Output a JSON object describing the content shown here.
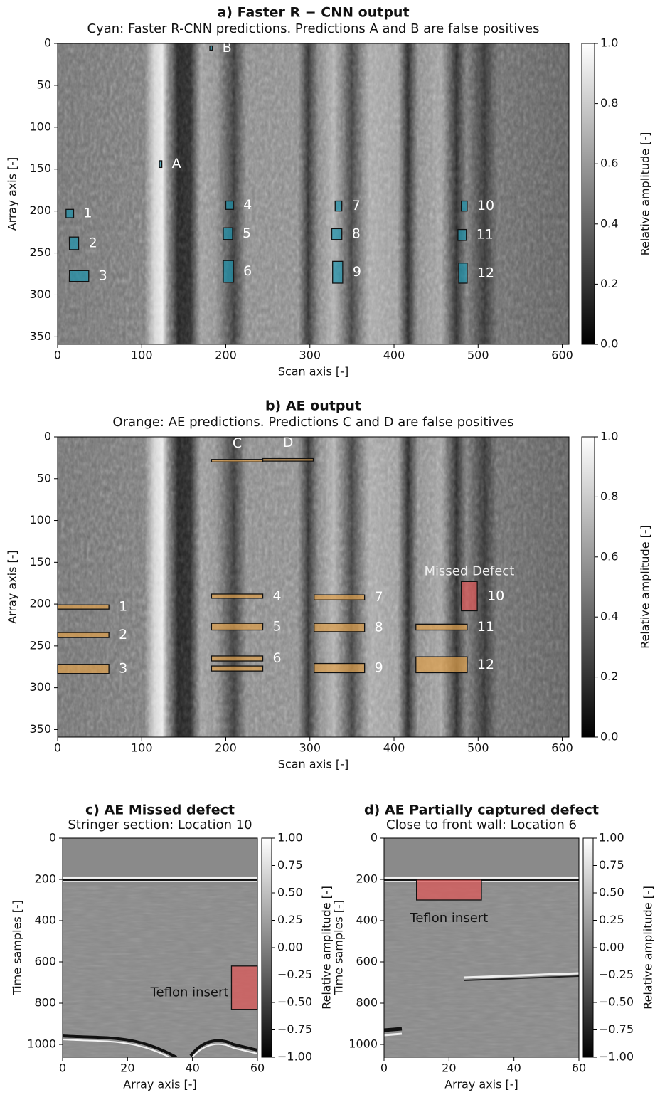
{
  "chart_data": [
    {
      "type": "heatmap",
      "title": "a) Faster R − CNN output",
      "subtitle": "Cyan: Faster R-CNN predictions. Predictions A and B are false positives",
      "x_label": "Scan axis [-]",
      "y_label": "Array axis [-]",
      "xlim": [
        0,
        608
      ],
      "ylim": [
        359,
        0
      ],
      "xticks": [
        0,
        100,
        200,
        300,
        400,
        500,
        600
      ],
      "yticks": [
        0,
        50,
        100,
        150,
        200,
        250,
        300,
        350
      ],
      "colorbar_label": "Relative amplitude [-]",
      "zlim": [
        0,
        1
      ],
      "zticks": [
        {
          "value": 0,
          "label": "0.0"
        },
        {
          "value": 0.2,
          "label": "0.2"
        },
        {
          "value": 0.4,
          "label": "0.4"
        },
        {
          "value": 0.6,
          "label": "0.6"
        },
        {
          "value": 0.8,
          "label": "0.8"
        },
        {
          "value": 1,
          "label": "1.0"
        }
      ],
      "box_color": "#1c93ad",
      "boxes": [
        {
          "label": "B",
          "x": [
            181,
            184
          ],
          "y": [
            3,
            8
          ]
        },
        {
          "label": "A",
          "x": [
            121,
            124
          ],
          "y": [
            140,
            148
          ]
        },
        {
          "label": "1",
          "x": [
            10,
            19
          ],
          "y": [
            198,
            208
          ]
        },
        {
          "label": "2",
          "x": [
            14,
            25
          ],
          "y": [
            231,
            246
          ]
        },
        {
          "label": "3",
          "x": [
            14,
            37
          ],
          "y": [
            271,
            284
          ]
        },
        {
          "label": "4",
          "x": [
            200,
            209
          ],
          "y": [
            188,
            198
          ]
        },
        {
          "label": "5",
          "x": [
            197,
            208
          ],
          "y": [
            220,
            234
          ]
        },
        {
          "label": "6",
          "x": [
            197,
            209
          ],
          "y": [
            259,
            285
          ]
        },
        {
          "label": "7",
          "x": [
            330,
            338
          ],
          "y": [
            188,
            200
          ]
        },
        {
          "label": "8",
          "x": [
            326,
            338
          ],
          "y": [
            221,
            234
          ]
        },
        {
          "label": "9",
          "x": [
            327,
            339
          ],
          "y": [
            260,
            286
          ]
        },
        {
          "label": "10",
          "x": [
            480,
            487
          ],
          "y": [
            188,
            200
          ]
        },
        {
          "label": "11",
          "x": [
            476,
            486
          ],
          "y": [
            222,
            235
          ]
        },
        {
          "label": "12",
          "x": [
            477,
            487
          ],
          "y": [
            262,
            286
          ]
        }
      ]
    },
    {
      "type": "heatmap",
      "title": "b) AE output",
      "subtitle": "Orange: AE predictions. Predictions C and D are false positives",
      "x_label": "Scan axis [-]",
      "y_label": "Array axis [-]",
      "xlim": [
        0,
        608
      ],
      "ylim": [
        359,
        0
      ],
      "xticks": [
        0,
        100,
        200,
        300,
        400,
        500,
        600
      ],
      "yticks": [
        0,
        50,
        100,
        150,
        200,
        250,
        300,
        350
      ],
      "colorbar_label": "Relative amplitude [-]",
      "zlim": [
        0,
        1
      ],
      "zticks": [
        {
          "value": 0,
          "label": "0.0"
        },
        {
          "value": 0.2,
          "label": "0.2"
        },
        {
          "value": 0.4,
          "label": "0.4"
        },
        {
          "value": 0.6,
          "label": "0.6"
        },
        {
          "value": 0.8,
          "label": "0.8"
        },
        {
          "value": 1,
          "label": "1.0"
        }
      ],
      "box_color": "#e0a04a",
      "annotation": "Missed Defect",
      "boxes": [
        {
          "label": "C",
          "x": [
            183,
            244
          ],
          "y": [
            27,
            30
          ]
        },
        {
          "label": "D",
          "x": [
            244,
            304
          ],
          "y": [
            26,
            29
          ]
        },
        {
          "label": "1",
          "x": [
            0,
            61
          ],
          "y": [
            201,
            206
          ]
        },
        {
          "label": "2",
          "x": [
            0,
            61
          ],
          "y": [
            234,
            240
          ]
        },
        {
          "label": "3",
          "x": [
            0,
            61
          ],
          "y": [
            272,
            283
          ]
        },
        {
          "label": "4",
          "x": [
            183,
            244
          ],
          "y": [
            188,
            193
          ]
        },
        {
          "label": "5",
          "x": [
            183,
            244
          ],
          "y": [
            223,
            231
          ]
        },
        {
          "label": "6",
          "x": [
            183,
            244
          ],
          "y": [
            262,
            268
          ]
        },
        {
          "label": null,
          "x": [
            183,
            244
          ],
          "y": [
            274,
            280
          ]
        },
        {
          "label": "7",
          "x": [
            305,
            365
          ],
          "y": [
            189,
            195
          ]
        },
        {
          "label": "8",
          "x": [
            305,
            365
          ],
          "y": [
            223,
            233
          ]
        },
        {
          "label": "9",
          "x": [
            305,
            365
          ],
          "y": [
            271,
            282
          ]
        },
        {
          "label": "10",
          "x": [
            480,
            499
          ],
          "y": [
            173,
            208
          ],
          "color": "#e05555"
        },
        {
          "label": "11",
          "x": [
            426,
            487
          ],
          "y": [
            224,
            231
          ]
        },
        {
          "label": "12",
          "x": [
            426,
            487
          ],
          "y": [
            263,
            282
          ]
        }
      ]
    },
    {
      "type": "heatmap",
      "title": "c) AE Missed defect",
      "subtitle": "Stringer section: Location 10",
      "x_label": "Array axis [-]",
      "y_label": "Time samples [-]",
      "xlim": [
        0,
        60
      ],
      "ylim": [
        1062,
        0
      ],
      "xticks": [
        0,
        20,
        40,
        60
      ],
      "yticks": [
        0,
        200,
        400,
        600,
        800,
        1000
      ],
      "colorbar_label": "Relative amplitude [-]",
      "zlim": [
        -1,
        1
      ],
      "zticks": [
        {
          "value": -1,
          "label": "−1.00"
        },
        {
          "value": -0.75,
          "label": "−0.75"
        },
        {
          "value": -0.5,
          "label": "−0.50"
        },
        {
          "value": -0.25,
          "label": "−0.25"
        },
        {
          "value": 0,
          "label": "0.00"
        },
        {
          "value": 0.25,
          "label": "0.25"
        },
        {
          "value": 0.5,
          "label": "0.50"
        },
        {
          "value": 0.75,
          "label": "0.75"
        },
        {
          "value": 1,
          "label": "1.00"
        }
      ],
      "box_color": "#e05555",
      "boxes": [
        {
          "label": "Teflon insert",
          "x": [
            52,
            60
          ],
          "y": [
            620,
            830
          ]
        }
      ]
    },
    {
      "type": "heatmap",
      "title": "d) AE Partially captured defect",
      "subtitle": "Close to front wall: Location 6",
      "x_label": "Array axis [-]",
      "y_label": "Time samples [-]",
      "xlim": [
        0,
        60
      ],
      "ylim": [
        1062,
        0
      ],
      "xticks": [
        0,
        20,
        40,
        60
      ],
      "yticks": [
        0,
        200,
        400,
        600,
        800,
        1000
      ],
      "colorbar_label": "Relative amplitude [-]",
      "zlim": [
        -1,
        1
      ],
      "zticks": [
        {
          "value": -1,
          "label": "−1.00"
        },
        {
          "value": -0.75,
          "label": "−0.75"
        },
        {
          "value": -0.5,
          "label": "−0.50"
        },
        {
          "value": -0.25,
          "label": "−0.25"
        },
        {
          "value": 0,
          "label": "0.00"
        },
        {
          "value": 0.25,
          "label": "0.25"
        },
        {
          "value": 0.5,
          "label": "0.50"
        },
        {
          "value": 0.75,
          "label": "0.75"
        },
        {
          "value": 1,
          "label": "1.00"
        }
      ],
      "box_color": "#e05555",
      "boxes": [
        {
          "label": "Teflon insert",
          "x": [
            10,
            30
          ],
          "y": [
            200,
            300
          ]
        }
      ]
    }
  ]
}
